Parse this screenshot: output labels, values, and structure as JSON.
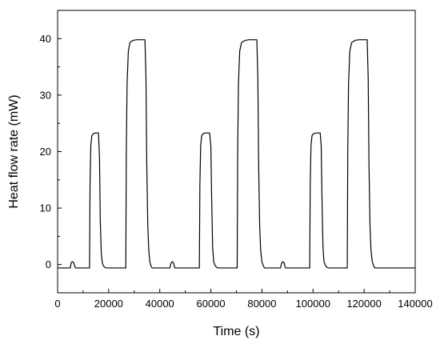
{
  "chart_data": {
    "type": "line",
    "title": "",
    "xlabel": "Time (s)",
    "ylabel": "Heat flow rate (mW)",
    "xlim": [
      0,
      140000
    ],
    "ylim": [
      -5,
      45
    ],
    "xticks": [
      0,
      20000,
      40000,
      60000,
      80000,
      100000,
      120000,
      140000
    ],
    "yticks": [
      0,
      10,
      20,
      30,
      40
    ],
    "grid": false,
    "legend": "none",
    "line_color": "#000000",
    "series": [
      {
        "name": "",
        "x": [
          0,
          5000,
          5200,
          5600,
          6000,
          6400,
          6800,
          7000,
          12500,
          12700,
          13000,
          13400,
          14000,
          15000,
          16000,
          16400,
          16700,
          17100,
          17500,
          18000,
          18600,
          19000,
          26700,
          26900,
          27200,
          27700,
          28300,
          29500,
          31000,
          34200,
          34600,
          34900,
          35300,
          35700,
          36100,
          36600,
          37000,
          44000,
          44300,
          44800,
          45400,
          45800,
          46000,
          55500,
          55700,
          56000,
          56400,
          57000,
          58000,
          59500,
          60000,
          60300,
          60700,
          61100,
          61700,
          62300,
          62800,
          70300,
          70500,
          70800,
          71300,
          72000,
          73500,
          75000,
          78000,
          78400,
          78700,
          79100,
          79500,
          80000,
          80600,
          81000,
          87300,
          87600,
          88100,
          88700,
          89100,
          89300,
          98700,
          98900,
          99200,
          99600,
          100200,
          101500,
          102800,
          103200,
          103500,
          103900,
          104300,
          104900,
          105500,
          106000,
          113400,
          113600,
          113900,
          114400,
          115100,
          116500,
          118000,
          121200,
          121600,
          121900,
          122300,
          122700,
          123200,
          123800,
          124200,
          140000
        ],
        "y": [
          -0.6,
          -0.6,
          0.1,
          0.5,
          0.5,
          0.2,
          -0.4,
          -0.6,
          -0.6,
          14.0,
          21.0,
          22.8,
          23.2,
          23.3,
          23.3,
          19.0,
          8.0,
          2.0,
          0.3,
          -0.3,
          -0.5,
          -0.6,
          -0.6,
          20.0,
          32.0,
          37.8,
          39.3,
          39.7,
          39.8,
          39.8,
          33.0,
          18.0,
          7.0,
          2.5,
          0.5,
          -0.3,
          -0.6,
          -0.6,
          0.1,
          0.5,
          0.3,
          -0.5,
          -0.6,
          -0.6,
          14.0,
          21.0,
          22.8,
          23.2,
          23.3,
          23.3,
          21.0,
          12.0,
          3.0,
          0.5,
          -0.2,
          -0.5,
          -0.6,
          -0.6,
          20.0,
          32.0,
          37.8,
          39.3,
          39.7,
          39.8,
          39.8,
          33.0,
          18.0,
          7.0,
          2.5,
          0.5,
          -0.3,
          -0.6,
          -0.6,
          0.1,
          0.5,
          0.3,
          -0.5,
          -0.6,
          -0.6,
          14.0,
          21.0,
          22.8,
          23.2,
          23.3,
          23.3,
          21.0,
          12.0,
          3.0,
          0.5,
          -0.2,
          -0.5,
          -0.6,
          -0.6,
          20.0,
          32.0,
          37.8,
          39.3,
          39.7,
          39.8,
          39.8,
          33.0,
          18.0,
          7.0,
          2.5,
          0.5,
          -0.3,
          -0.6,
          -0.6
        ]
      }
    ]
  }
}
